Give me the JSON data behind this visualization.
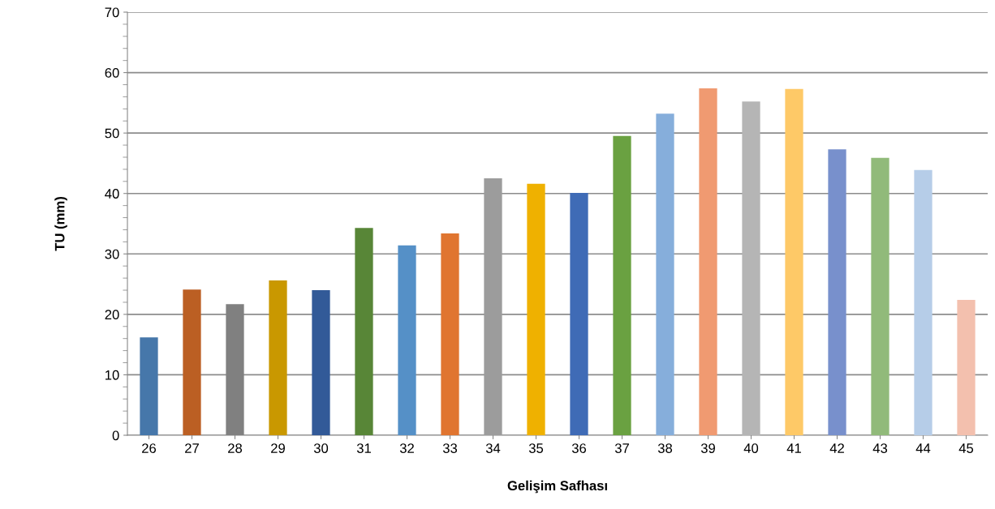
{
  "chart_data": {
    "type": "bar",
    "xlabel": "Gelişim Safhası",
    "ylabel": "TU (mm)",
    "categories": [
      "26",
      "27",
      "28",
      "29",
      "30",
      "31",
      "32",
      "33",
      "34",
      "35",
      "36",
      "37",
      "38",
      "39",
      "40",
      "41",
      "42",
      "43",
      "44",
      "45"
    ],
    "values": [
      16.2,
      24.1,
      21.7,
      25.6,
      24.0,
      34.3,
      31.4,
      33.4,
      42.5,
      41.6,
      40.1,
      49.5,
      53.2,
      57.4,
      55.2,
      57.3,
      47.3,
      45.9,
      43.9,
      22.4
    ],
    "colors": [
      "#4677aa",
      "#bb5f23",
      "#808080",
      "#c99800",
      "#325a98",
      "#588637",
      "#5590c7",
      "#e07530",
      "#9c9c9c",
      "#efb100",
      "#3f6bb6",
      "#6aa141",
      "#86aedb",
      "#f09a71",
      "#b5b5b5",
      "#fec967",
      "#7890cc",
      "#91ba7a",
      "#b6cde8",
      "#f3c0ae"
    ],
    "ylim": [
      0,
      70
    ],
    "yticks": [
      0,
      10,
      20,
      30,
      40,
      50,
      60,
      70
    ],
    "grid": "y"
  }
}
